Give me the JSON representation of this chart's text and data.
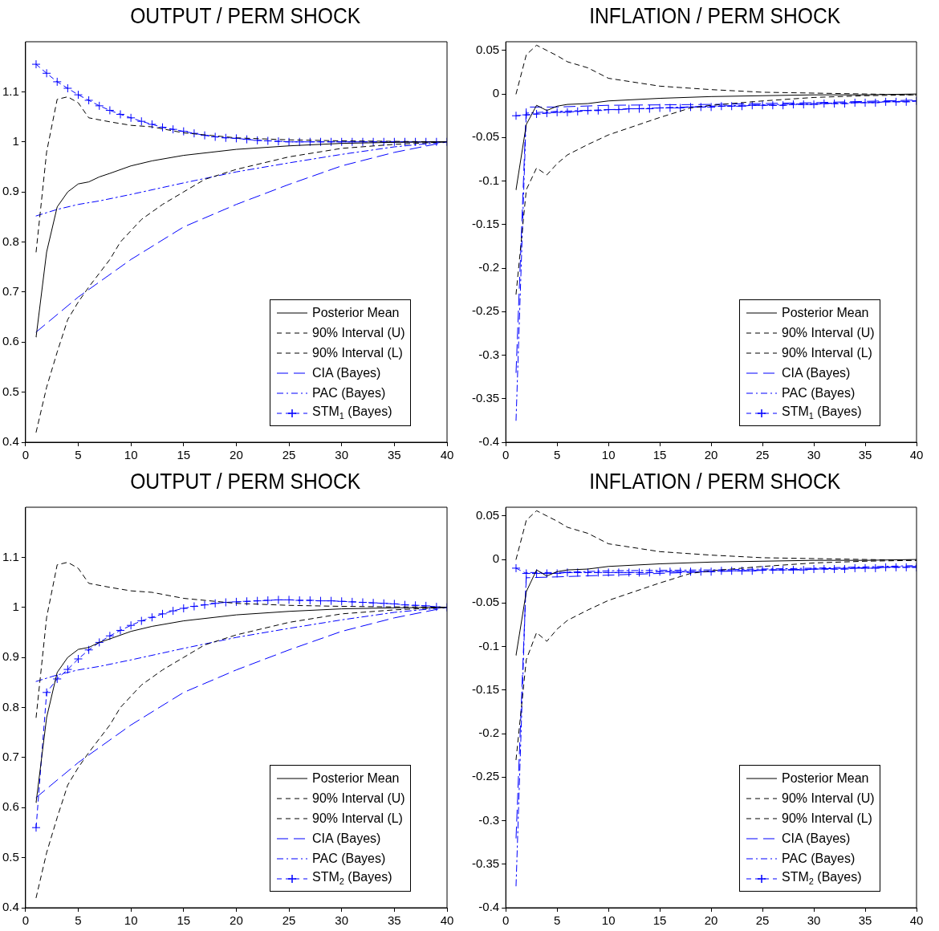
{
  "chart_data": [
    {
      "type": "line",
      "title": "OUTPUT / PERM SHOCK",
      "xlim": [
        0,
        40
      ],
      "xticks": [
        0,
        5,
        10,
        15,
        20,
        25,
        30,
        35,
        40
      ],
      "ylim": [
        0.4,
        1.2
      ],
      "yticks": [
        0.4,
        0.5,
        0.6,
        0.7,
        0.8,
        0.9,
        1,
        1.1
      ],
      "legend": "bottom right",
      "series": [
        {
          "name": "Posterior Mean",
          "color": "#000000",
          "line_style": "solid",
          "x": [
            1,
            2,
            3,
            4,
            5,
            6,
            7,
            8,
            10,
            12,
            15,
            20,
            25,
            30,
            35,
            40
          ],
          "values": [
            0.61,
            0.78,
            0.87,
            0.9,
            0.916,
            0.92,
            0.93,
            0.937,
            0.952,
            0.962,
            0.973,
            0.985,
            0.992,
            0.997,
            0.999,
            1.0
          ]
        },
        {
          "name": "90% Interval (U)",
          "color": "#000000",
          "line_style": "dashed",
          "x": [
            1,
            2,
            3,
            4,
            5,
            6,
            8,
            10,
            12,
            15,
            20,
            25,
            30,
            35,
            40
          ],
          "values": [
            0.78,
            0.98,
            1.085,
            1.09,
            1.078,
            1.048,
            1.04,
            1.033,
            1.03,
            1.018,
            1.008,
            1.004,
            1.002,
            1.001,
            1.0
          ]
        },
        {
          "name": "90% Interval (L)",
          "color": "#000000",
          "line_style": "dashed",
          "x": [
            1,
            2,
            3,
            4,
            5,
            6,
            8,
            9,
            11,
            13,
            15,
            17,
            20,
            25,
            30,
            35,
            40
          ],
          "values": [
            0.42,
            0.51,
            0.58,
            0.645,
            0.68,
            0.71,
            0.765,
            0.8,
            0.845,
            0.875,
            0.9,
            0.925,
            0.945,
            0.97,
            0.987,
            0.995,
            1.0
          ]
        },
        {
          "name": "CIA (Bayes)",
          "color": "#0000ff",
          "line_style": "dashed",
          "x": [
            1,
            5,
            7,
            10,
            15,
            20,
            25,
            30,
            35,
            40
          ],
          "values": [
            0.62,
            0.69,
            0.72,
            0.765,
            0.83,
            0.875,
            0.915,
            0.952,
            0.979,
            1.0
          ]
        },
        {
          "name": "PAC (Bayes)",
          "color": "#0000ff",
          "line_style": "dashed",
          "x": [
            1,
            3,
            5,
            7,
            10,
            15,
            20,
            25,
            30,
            35,
            40
          ],
          "values": [
            0.852,
            0.865,
            0.875,
            0.882,
            0.895,
            0.918,
            0.94,
            0.958,
            0.975,
            0.99,
            1.0
          ]
        },
        {
          "name": "STM$_{1}$ (Bayes)",
          "color": "#0000ff",
          "line_style": "dashed",
          "marker": "cross",
          "x": [
            1,
            2,
            3,
            4,
            5,
            6,
            7,
            8,
            9,
            10,
            11,
            12,
            13,
            14,
            15,
            16,
            17,
            18,
            19,
            20,
            21,
            22,
            23,
            24,
            25,
            26,
            27,
            28,
            29,
            30,
            31,
            32,
            33,
            34,
            35,
            36,
            37,
            38,
            39,
            40
          ],
          "values": [
            1.155,
            1.137,
            1.12,
            1.107,
            1.094,
            1.083,
            1.072,
            1.063,
            1.055,
            1.048,
            1.041,
            1.035,
            1.029,
            1.025,
            1.021,
            1.017,
            1.013,
            1.01,
            1.008,
            1.007,
            1.005,
            1.003,
            1.002,
            1.001,
            1.0,
            1.0,
            1.0,
            1.0,
            1.0,
            1.0,
            1.0,
            1.0,
            1.0,
            1.0,
            1.0,
            1.0,
            1.0,
            1.0,
            1.0,
            1.0
          ]
        }
      ]
    },
    {
      "type": "line",
      "title": "INFLATION / PERM SHOCK",
      "xlim": [
        0,
        40
      ],
      "xticks": [
        0,
        5,
        10,
        15,
        20,
        25,
        30,
        35,
        40
      ],
      "ylim": [
        -0.4,
        0.06
      ],
      "yticks": [
        -0.4,
        -0.35,
        -0.3,
        -0.25,
        -0.2,
        -0.15,
        -0.1,
        -0.05,
        0,
        0.05
      ],
      "legend": "bottom right",
      "series": [
        {
          "name": "Posterior Mean",
          "color": "#000000",
          "line_style": "solid",
          "x": [
            1,
            2,
            3,
            4,
            5,
            6,
            8,
            10,
            15,
            20,
            25,
            30,
            35,
            40
          ],
          "values": [
            -0.11,
            -0.035,
            -0.013,
            -0.019,
            -0.014,
            -0.012,
            -0.011,
            -0.008,
            -0.005,
            -0.003,
            -0.002,
            -0.001,
            -0.001,
            0
          ]
        },
        {
          "name": "90% Interval (U)",
          "color": "#000000",
          "line_style": "dashed",
          "x": [
            1,
            2,
            3,
            4,
            5,
            6,
            8,
            10,
            15,
            20,
            25,
            30,
            35,
            40
          ],
          "values": [
            0.0,
            0.045,
            0.056,
            0.05,
            0.044,
            0.037,
            0.03,
            0.018,
            0.009,
            0.005,
            0.002,
            0.001,
            0.0,
            -0.001
          ]
        },
        {
          "name": "90% Interval (L)",
          "color": "#000000",
          "line_style": "dashed",
          "x": [
            1,
            2,
            3,
            4,
            5,
            6,
            8,
            10,
            15,
            18,
            20,
            25,
            30,
            35,
            40
          ],
          "values": [
            -0.23,
            -0.11,
            -0.085,
            -0.093,
            -0.08,
            -0.07,
            -0.058,
            -0.047,
            -0.027,
            -0.016,
            -0.013,
            -0.008,
            -0.004,
            -0.002,
            -0.001
          ]
        },
        {
          "name": "CIA (Bayes)",
          "color": "#0000ff",
          "line_style": "dashed",
          "x": [
            1,
            2,
            5,
            10,
            20,
            30,
            40
          ],
          "values": [
            -0.32,
            -0.015,
            -0.015,
            -0.013,
            -0.012,
            -0.01,
            -0.007
          ]
        },
        {
          "name": "PAC (Bayes)",
          "color": "#0000ff",
          "line_style": "dashed",
          "x": [
            1,
            2,
            5,
            10,
            20,
            30,
            40
          ],
          "values": [
            -0.375,
            -0.022,
            -0.02,
            -0.018,
            -0.014,
            -0.011,
            -0.008
          ]
        },
        {
          "name": "STM$_{1}$ (Bayes)",
          "color": "#0000ff",
          "line_style": "dashed",
          "marker": "cross",
          "x": [
            1,
            2,
            3,
            4,
            5,
            6,
            7,
            8,
            9,
            10,
            11,
            12,
            13,
            14,
            15,
            16,
            17,
            18,
            19,
            20,
            21,
            22,
            23,
            24,
            25,
            26,
            27,
            28,
            29,
            30,
            31,
            32,
            33,
            34,
            35,
            36,
            37,
            38,
            39,
            40
          ],
          "values": [
            -0.025,
            -0.024,
            -0.023,
            -0.022,
            -0.021,
            -0.021,
            -0.02,
            -0.019,
            -0.019,
            -0.018,
            -0.018,
            -0.017,
            -0.017,
            -0.017,
            -0.016,
            -0.016,
            -0.016,
            -0.015,
            -0.015,
            -0.015,
            -0.014,
            -0.014,
            -0.014,
            -0.013,
            -0.013,
            -0.013,
            -0.013,
            -0.012,
            -0.012,
            -0.012,
            -0.011,
            -0.011,
            -0.011,
            -0.01,
            -0.01,
            -0.01,
            -0.009,
            -0.009,
            -0.009,
            -0.008
          ]
        }
      ]
    },
    {
      "type": "line",
      "title": "OUTPUT / PERM SHOCK",
      "xlim": [
        0,
        40
      ],
      "xticks": [
        0,
        5,
        10,
        15,
        20,
        25,
        30,
        35,
        40
      ],
      "ylim": [
        0.4,
        1.2
      ],
      "yticks": [
        0.4,
        0.5,
        0.6,
        0.7,
        0.8,
        0.9,
        1,
        1.1
      ],
      "legend": "bottom right",
      "series": [
        {
          "name": "Posterior Mean",
          "color": "#000000",
          "line_style": "solid",
          "x": [
            1,
            2,
            3,
            4,
            5,
            6,
            7,
            8,
            10,
            12,
            15,
            20,
            25,
            30,
            35,
            40
          ],
          "values": [
            0.61,
            0.78,
            0.87,
            0.9,
            0.916,
            0.92,
            0.93,
            0.937,
            0.952,
            0.962,
            0.973,
            0.985,
            0.992,
            0.997,
            0.999,
            1.0
          ]
        },
        {
          "name": "90% Interval (U)",
          "color": "#000000",
          "line_style": "dashed",
          "x": [
            1,
            2,
            3,
            4,
            5,
            6,
            8,
            10,
            12,
            15,
            20,
            25,
            30,
            35,
            40
          ],
          "values": [
            0.78,
            0.98,
            1.085,
            1.09,
            1.078,
            1.048,
            1.04,
            1.033,
            1.03,
            1.018,
            1.008,
            1.004,
            1.002,
            1.001,
            1.0
          ]
        },
        {
          "name": "90% Interval (L)",
          "color": "#000000",
          "line_style": "dashed",
          "x": [
            1,
            2,
            3,
            4,
            5,
            6,
            8,
            9,
            11,
            13,
            15,
            17,
            20,
            25,
            30,
            35,
            40
          ],
          "values": [
            0.42,
            0.51,
            0.58,
            0.645,
            0.68,
            0.71,
            0.765,
            0.8,
            0.845,
            0.875,
            0.9,
            0.925,
            0.945,
            0.97,
            0.987,
            0.995,
            1.0
          ]
        },
        {
          "name": "CIA (Bayes)",
          "color": "#0000ff",
          "line_style": "dashed",
          "x": [
            1,
            5,
            7,
            10,
            15,
            20,
            25,
            30,
            35,
            40
          ],
          "values": [
            0.62,
            0.69,
            0.72,
            0.765,
            0.83,
            0.875,
            0.915,
            0.952,
            0.979,
            1.0
          ]
        },
        {
          "name": "PAC (Bayes)",
          "color": "#0000ff",
          "line_style": "dashed",
          "x": [
            1,
            3,
            5,
            7,
            10,
            15,
            20,
            25,
            30,
            35,
            40
          ],
          "values": [
            0.852,
            0.865,
            0.875,
            0.882,
            0.895,
            0.918,
            0.94,
            0.958,
            0.975,
            0.99,
            1.0
          ]
        },
        {
          "name": "STM$_{2}$ (Bayes)",
          "color": "#0000ff",
          "line_style": "dashed",
          "marker": "cross",
          "x": [
            1,
            2,
            3,
            4,
            5,
            6,
            7,
            8,
            9,
            10,
            11,
            12,
            13,
            14,
            15,
            16,
            17,
            18,
            19,
            20,
            21,
            22,
            23,
            24,
            25,
            26,
            27,
            28,
            29,
            30,
            31,
            32,
            33,
            34,
            35,
            36,
            37,
            38,
            39,
            40
          ],
          "values": [
            0.56,
            0.83,
            0.857,
            0.876,
            0.897,
            0.915,
            0.93,
            0.943,
            0.954,
            0.964,
            0.973,
            0.98,
            0.987,
            0.993,
            0.998,
            1.002,
            1.005,
            1.008,
            1.01,
            1.011,
            1.012,
            1.013,
            1.014,
            1.015,
            1.015,
            1.014,
            1.014,
            1.013,
            1.013,
            1.012,
            1.011,
            1.01,
            1.009,
            1.008,
            1.007,
            1.005,
            1.004,
            1.003,
            1.001,
            1.0
          ]
        }
      ]
    },
    {
      "type": "line",
      "title": "INFLATION / PERM SHOCK",
      "xlim": [
        0,
        40
      ],
      "xticks": [
        0,
        5,
        10,
        15,
        20,
        25,
        30,
        35,
        40
      ],
      "ylim": [
        -0.4,
        0.06
      ],
      "yticks": [
        -0.4,
        -0.35,
        -0.3,
        -0.25,
        -0.2,
        -0.15,
        -0.1,
        -0.05,
        0,
        0.05
      ],
      "legend": "bottom right",
      "series": [
        {
          "name": "Posterior Mean",
          "color": "#000000",
          "line_style": "solid",
          "x": [
            1,
            2,
            3,
            4,
            5,
            6,
            8,
            10,
            15,
            20,
            25,
            30,
            35,
            40
          ],
          "values": [
            -0.11,
            -0.037,
            -0.012,
            -0.019,
            -0.014,
            -0.012,
            -0.011,
            -0.008,
            -0.005,
            -0.003,
            -0.002,
            -0.001,
            -0.001,
            0
          ]
        },
        {
          "name": "90% Interval (U)",
          "color": "#000000",
          "line_style": "dashed",
          "x": [
            1,
            2,
            3,
            4,
            5,
            6,
            8,
            10,
            15,
            20,
            25,
            30,
            35,
            40
          ],
          "values": [
            0.0,
            0.045,
            0.056,
            0.05,
            0.044,
            0.037,
            0.03,
            0.018,
            0.009,
            0.005,
            0.002,
            0.001,
            0.0,
            -0.001
          ]
        },
        {
          "name": "90% Interval (L)",
          "color": "#000000",
          "line_style": "dashed",
          "x": [
            1,
            2,
            3,
            4,
            5,
            6,
            8,
            10,
            15,
            18,
            20,
            25,
            30,
            35,
            40
          ],
          "values": [
            -0.23,
            -0.115,
            -0.084,
            -0.094,
            -0.08,
            -0.07,
            -0.058,
            -0.047,
            -0.027,
            -0.016,
            -0.013,
            -0.008,
            -0.004,
            -0.002,
            -0.001
          ]
        },
        {
          "name": "CIA (Bayes)",
          "color": "#0000ff",
          "line_style": "dashed",
          "x": [
            1,
            2,
            5,
            10,
            20,
            30,
            40
          ],
          "values": [
            -0.32,
            -0.021,
            -0.02,
            -0.018,
            -0.014,
            -0.011,
            -0.008
          ]
        },
        {
          "name": "PAC (Bayes)",
          "color": "#0000ff",
          "line_style": "dashed",
          "x": [
            1,
            2,
            5,
            10,
            20,
            30,
            40
          ],
          "values": [
            -0.375,
            -0.015,
            -0.015,
            -0.013,
            -0.012,
            -0.01,
            -0.007
          ]
        },
        {
          "name": "STM$_{2}$ (Bayes)",
          "color": "#0000ff",
          "line_style": "dashed",
          "marker": "cross",
          "x": [
            1,
            2,
            3,
            4,
            5,
            6,
            7,
            8,
            9,
            10,
            11,
            12,
            13,
            14,
            15,
            16,
            17,
            18,
            19,
            20,
            21,
            22,
            23,
            24,
            25,
            26,
            27,
            28,
            29,
            30,
            31,
            32,
            33,
            34,
            35,
            36,
            37,
            38,
            39,
            40
          ],
          "values": [
            -0.01,
            -0.016,
            -0.016,
            -0.016,
            -0.016,
            -0.015,
            -0.015,
            -0.015,
            -0.015,
            -0.015,
            -0.015,
            -0.015,
            -0.015,
            -0.015,
            -0.014,
            -0.014,
            -0.014,
            -0.014,
            -0.014,
            -0.014,
            -0.013,
            -0.013,
            -0.013,
            -0.013,
            -0.012,
            -0.012,
            -0.012,
            -0.012,
            -0.012,
            -0.011,
            -0.011,
            -0.011,
            -0.011,
            -0.01,
            -0.01,
            -0.01,
            -0.009,
            -0.009,
            -0.009,
            -0.009
          ]
        }
      ]
    }
  ]
}
